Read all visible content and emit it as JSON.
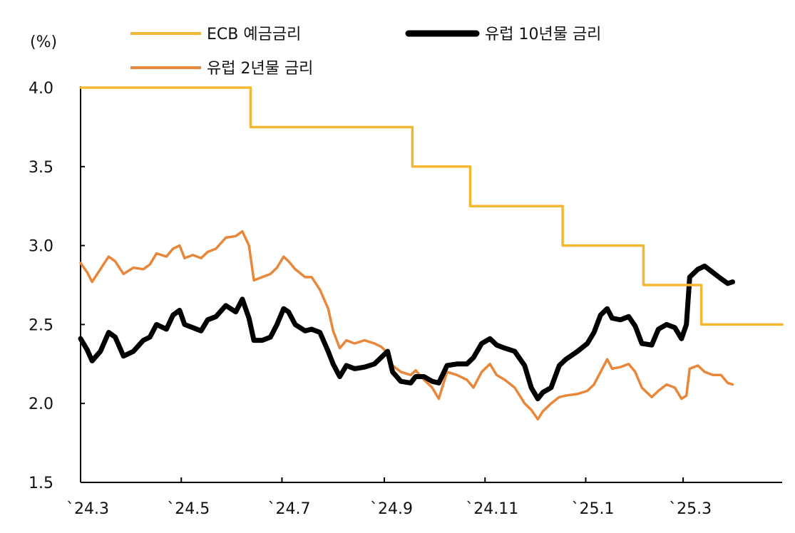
{
  "chart_data": {
    "type": "line",
    "title": "",
    "unit_label": "(%)",
    "xlabel": "",
    "ylabel": "",
    "ylim": [
      1.5,
      4.0
    ],
    "y_ticks": [
      "4.0",
      "3.5",
      "3.0",
      "2.5",
      "2.0",
      "1.5"
    ],
    "x_tick_labels": [
      "`24.3",
      "`24.5",
      "`24.7",
      "`24.9",
      "`24.11",
      "`25.1",
      "`25.3"
    ],
    "x_tick_dates": [
      "2024-03-01",
      "2024-05-01",
      "2024-07-01",
      "2024-09-01",
      "2024-11-01",
      "2025-01-01",
      "2025-03-01"
    ],
    "xlim": [
      "2024-03-01",
      "2025-04-30"
    ],
    "grid": false,
    "legend_position": "top",
    "series": [
      {
        "name": "ECB 예금금리",
        "color": "#F5B731",
        "style": "step",
        "points": [
          [
            "2024-03-01",
            4.0
          ],
          [
            "2024-06-12",
            3.75
          ],
          [
            "2024-09-18",
            3.5
          ],
          [
            "2024-10-23",
            3.25
          ],
          [
            "2024-12-18",
            3.0
          ],
          [
            "2025-02-05",
            2.75
          ],
          [
            "2025-03-12",
            2.5
          ],
          [
            "2025-04-30",
            2.5
          ]
        ]
      },
      {
        "name": "유럽 10년물 금리",
        "color": "#000000",
        "style": "line",
        "points": [
          [
            "2024-03-01",
            2.41
          ],
          [
            "2024-03-05",
            2.34
          ],
          [
            "2024-03-08",
            2.27
          ],
          [
            "2024-03-13",
            2.33
          ],
          [
            "2024-03-18",
            2.45
          ],
          [
            "2024-03-22",
            2.42
          ],
          [
            "2024-03-27",
            2.3
          ],
          [
            "2024-04-02",
            2.33
          ],
          [
            "2024-04-08",
            2.4
          ],
          [
            "2024-04-12",
            2.42
          ],
          [
            "2024-04-16",
            2.5
          ],
          [
            "2024-04-22",
            2.47
          ],
          [
            "2024-04-26",
            2.56
          ],
          [
            "2024-04-30",
            2.59
          ],
          [
            "2024-05-03",
            2.5
          ],
          [
            "2024-05-08",
            2.48
          ],
          [
            "2024-05-13",
            2.46
          ],
          [
            "2024-05-17",
            2.53
          ],
          [
            "2024-05-22",
            2.55
          ],
          [
            "2024-05-28",
            2.62
          ],
          [
            "2024-06-03",
            2.58
          ],
          [
            "2024-06-07",
            2.66
          ],
          [
            "2024-06-11",
            2.54
          ],
          [
            "2024-06-14",
            2.4
          ],
          [
            "2024-06-19",
            2.4
          ],
          [
            "2024-06-24",
            2.42
          ],
          [
            "2024-06-28",
            2.5
          ],
          [
            "2024-07-02",
            2.6
          ],
          [
            "2024-07-05",
            2.58
          ],
          [
            "2024-07-09",
            2.5
          ],
          [
            "2024-07-15",
            2.46
          ],
          [
            "2024-07-19",
            2.47
          ],
          [
            "2024-07-24",
            2.45
          ],
          [
            "2024-07-29",
            2.33
          ],
          [
            "2024-08-01",
            2.25
          ],
          [
            "2024-08-05",
            2.17
          ],
          [
            "2024-08-09",
            2.24
          ],
          [
            "2024-08-14",
            2.22
          ],
          [
            "2024-08-20",
            2.23
          ],
          [
            "2024-08-26",
            2.25
          ],
          [
            "2024-08-30",
            2.29
          ],
          [
            "2024-09-03",
            2.33
          ],
          [
            "2024-09-06",
            2.2
          ],
          [
            "2024-09-11",
            2.14
          ],
          [
            "2024-09-17",
            2.13
          ],
          [
            "2024-09-20",
            2.17
          ],
          [
            "2024-09-25",
            2.17
          ],
          [
            "2024-09-30",
            2.14
          ],
          [
            "2024-10-04",
            2.13
          ],
          [
            "2024-10-09",
            2.24
          ],
          [
            "2024-10-15",
            2.25
          ],
          [
            "2024-10-21",
            2.25
          ],
          [
            "2024-10-25",
            2.29
          ],
          [
            "2024-10-30",
            2.38
          ],
          [
            "2024-11-04",
            2.41
          ],
          [
            "2024-11-08",
            2.37
          ],
          [
            "2024-11-13",
            2.35
          ],
          [
            "2024-11-19",
            2.33
          ],
          [
            "2024-11-25",
            2.24
          ],
          [
            "2024-11-29",
            2.1
          ],
          [
            "2024-12-03",
            2.03
          ],
          [
            "2024-12-06",
            2.07
          ],
          [
            "2024-12-11",
            2.1
          ],
          [
            "2024-12-16",
            2.24
          ],
          [
            "2024-12-20",
            2.28
          ],
          [
            "2024-12-27",
            2.33
          ],
          [
            "2025-01-02",
            2.38
          ],
          [
            "2025-01-06",
            2.45
          ],
          [
            "2025-01-10",
            2.56
          ],
          [
            "2025-01-14",
            2.6
          ],
          [
            "2025-01-17",
            2.54
          ],
          [
            "2025-01-22",
            2.53
          ],
          [
            "2025-01-27",
            2.55
          ],
          [
            "2025-01-31",
            2.49
          ],
          [
            "2025-02-04",
            2.38
          ],
          [
            "2025-02-10",
            2.37
          ],
          [
            "2025-02-14",
            2.47
          ],
          [
            "2025-02-19",
            2.5
          ],
          [
            "2025-02-24",
            2.48
          ],
          [
            "2025-02-28",
            2.41
          ],
          [
            "2025-03-03",
            2.5
          ],
          [
            "2025-03-05",
            2.8
          ],
          [
            "2025-03-10",
            2.85
          ],
          [
            "2025-03-14",
            2.87
          ],
          [
            "2025-03-19",
            2.83
          ],
          [
            "2025-03-24",
            2.79
          ],
          [
            "2025-03-28",
            2.76
          ],
          [
            "2025-03-31",
            2.77
          ]
        ]
      },
      {
        "name": "유럽 2년물 금리",
        "color": "#E8863A",
        "style": "line",
        "points": [
          [
            "2024-03-01",
            2.89
          ],
          [
            "2024-03-05",
            2.83
          ],
          [
            "2024-03-08",
            2.77
          ],
          [
            "2024-03-13",
            2.85
          ],
          [
            "2024-03-18",
            2.93
          ],
          [
            "2024-03-22",
            2.9
          ],
          [
            "2024-03-27",
            2.82
          ],
          [
            "2024-04-02",
            2.86
          ],
          [
            "2024-04-08",
            2.85
          ],
          [
            "2024-04-12",
            2.88
          ],
          [
            "2024-04-16",
            2.95
          ],
          [
            "2024-04-22",
            2.93
          ],
          [
            "2024-04-26",
            2.98
          ],
          [
            "2024-04-30",
            3.0
          ],
          [
            "2024-05-03",
            2.92
          ],
          [
            "2024-05-08",
            2.94
          ],
          [
            "2024-05-13",
            2.92
          ],
          [
            "2024-05-17",
            2.96
          ],
          [
            "2024-05-22",
            2.98
          ],
          [
            "2024-05-28",
            3.05
          ],
          [
            "2024-06-03",
            3.06
          ],
          [
            "2024-06-07",
            3.09
          ],
          [
            "2024-06-11",
            3.0
          ],
          [
            "2024-06-14",
            2.78
          ],
          [
            "2024-06-19",
            2.8
          ],
          [
            "2024-06-24",
            2.82
          ],
          [
            "2024-06-28",
            2.86
          ],
          [
            "2024-07-02",
            2.93
          ],
          [
            "2024-07-05",
            2.9
          ],
          [
            "2024-07-09",
            2.85
          ],
          [
            "2024-07-15",
            2.8
          ],
          [
            "2024-07-19",
            2.8
          ],
          [
            "2024-07-24",
            2.72
          ],
          [
            "2024-07-29",
            2.6
          ],
          [
            "2024-08-01",
            2.46
          ],
          [
            "2024-08-05",
            2.35
          ],
          [
            "2024-08-09",
            2.4
          ],
          [
            "2024-08-14",
            2.38
          ],
          [
            "2024-08-20",
            2.4
          ],
          [
            "2024-08-26",
            2.38
          ],
          [
            "2024-08-30",
            2.36
          ],
          [
            "2024-09-03",
            2.32
          ],
          [
            "2024-09-06",
            2.24
          ],
          [
            "2024-09-11",
            2.2
          ],
          [
            "2024-09-17",
            2.18
          ],
          [
            "2024-09-20",
            2.21
          ],
          [
            "2024-09-25",
            2.15
          ],
          [
            "2024-09-30",
            2.1
          ],
          [
            "2024-10-04",
            2.03
          ],
          [
            "2024-10-09",
            2.2
          ],
          [
            "2024-10-15",
            2.18
          ],
          [
            "2024-10-21",
            2.15
          ],
          [
            "2024-10-25",
            2.1
          ],
          [
            "2024-10-30",
            2.2
          ],
          [
            "2024-11-04",
            2.25
          ],
          [
            "2024-11-08",
            2.18
          ],
          [
            "2024-11-13",
            2.15
          ],
          [
            "2024-11-19",
            2.1
          ],
          [
            "2024-11-25",
            2.0
          ],
          [
            "2024-11-29",
            1.96
          ],
          [
            "2024-12-03",
            1.9
          ],
          [
            "2024-12-06",
            1.95
          ],
          [
            "2024-12-11",
            2.0
          ],
          [
            "2024-12-16",
            2.04
          ],
          [
            "2024-12-20",
            2.05
          ],
          [
            "2024-12-27",
            2.06
          ],
          [
            "2025-01-02",
            2.08
          ],
          [
            "2025-01-06",
            2.12
          ],
          [
            "2025-01-10",
            2.2
          ],
          [
            "2025-01-14",
            2.28
          ],
          [
            "2025-01-17",
            2.22
          ],
          [
            "2025-01-22",
            2.23
          ],
          [
            "2025-01-27",
            2.25
          ],
          [
            "2025-01-31",
            2.2
          ],
          [
            "2025-02-04",
            2.1
          ],
          [
            "2025-02-10",
            2.04
          ],
          [
            "2025-02-14",
            2.08
          ],
          [
            "2025-02-19",
            2.12
          ],
          [
            "2025-02-24",
            2.1
          ],
          [
            "2025-02-28",
            2.03
          ],
          [
            "2025-03-03",
            2.05
          ],
          [
            "2025-03-05",
            2.22
          ],
          [
            "2025-03-10",
            2.24
          ],
          [
            "2025-03-14",
            2.2
          ],
          [
            "2025-03-19",
            2.18
          ],
          [
            "2025-03-24",
            2.18
          ],
          [
            "2025-03-28",
            2.13
          ],
          [
            "2025-03-31",
            2.12
          ]
        ]
      }
    ]
  }
}
